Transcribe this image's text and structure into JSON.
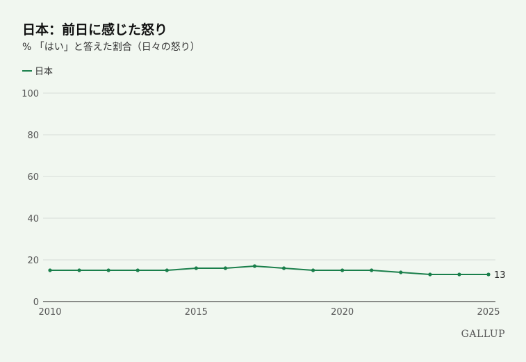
{
  "title": "日本：前日に感じた怒り",
  "subtitle": "% 「はい」と答えた割合（日々の怒り）",
  "brand": "GALLUP",
  "colors": {
    "series": "#1a7f4b",
    "grid": "#d8ded8",
    "axis": "#222222",
    "tick": "#555555"
  },
  "chart_data": {
    "type": "line",
    "x": [
      2010,
      2011,
      2012,
      2013,
      2014,
      2015,
      2016,
      2017,
      2018,
      2019,
      2020,
      2021,
      2022,
      2023,
      2024,
      2025
    ],
    "series": [
      {
        "name": "日本",
        "values": [
          15,
          15,
          15,
          15,
          15,
          16,
          16,
          17,
          16,
          15,
          15,
          15,
          14,
          13,
          13,
          13
        ]
      }
    ],
    "xlim": [
      2010,
      2025
    ],
    "ylim": [
      0,
      100
    ],
    "x_ticks": [
      "2010",
      "2015",
      "2020",
      "2025"
    ],
    "y_ticks": [
      "0",
      "20",
      "40",
      "60",
      "80",
      "100"
    ],
    "end_label": "13",
    "grid": true,
    "legend": "top-left"
  }
}
